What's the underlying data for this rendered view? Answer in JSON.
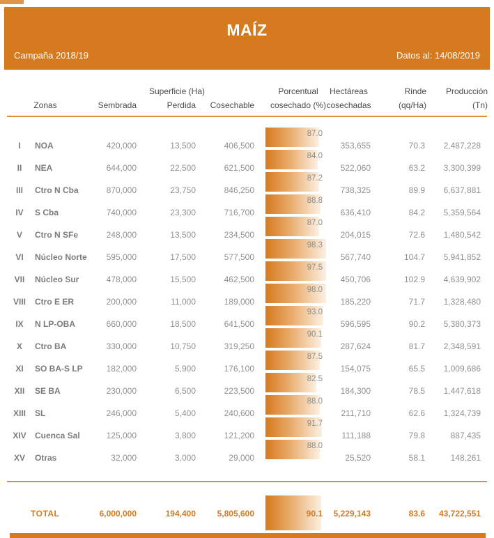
{
  "header": {
    "title": "MAÍZ",
    "campaign": "Campaña 2018/19",
    "data_date": "Datos al: 14/08/2019"
  },
  "columns": {
    "group_superficie": "Superficie (Ha)",
    "zonas": "Zonas",
    "sembrada": "Sembrada",
    "perdida": "Perdida",
    "cosechable": "Cosechable",
    "porcentual_line1": "Porcentual",
    "porcentual_line2": "cosechado (%)",
    "hectareas_line1": "Hectáreas",
    "hectareas_line2": "cosechadas",
    "rinde_line1": "Rinde",
    "rinde_line2": "(qq/Ha)",
    "produccion_line1": "Producción",
    "produccion_line2": "(Tn)"
  },
  "rows": [
    {
      "num": "I",
      "zona": "NOA",
      "sembrada": "420,000",
      "perdida": "13,500",
      "cosechable": "406,500",
      "pct": 87.0,
      "pct_label": "87.0",
      "cosechadas": "353,655",
      "rinde": "70.3",
      "produccion": "2,487,228"
    },
    {
      "num": "II",
      "zona": "NEA",
      "sembrada": "644,000",
      "perdida": "22,500",
      "cosechable": "621,500",
      "pct": 84.0,
      "pct_label": "84.0",
      "cosechadas": "522,060",
      "rinde": "63.2",
      "produccion": "3,300,399"
    },
    {
      "num": "III",
      "zona": "Ctro N Cba",
      "sembrada": "870,000",
      "perdida": "23,750",
      "cosechable": "846,250",
      "pct": 87.2,
      "pct_label": "87.2",
      "cosechadas": "738,325",
      "rinde": "89.9",
      "produccion": "6,637,881"
    },
    {
      "num": "IV",
      "zona": "S Cba",
      "sembrada": "740,000",
      "perdida": "23,300",
      "cosechable": "716,700",
      "pct": 88.8,
      "pct_label": "88.8",
      "cosechadas": "636,410",
      "rinde": "84.2",
      "produccion": "5,359,564"
    },
    {
      "num": "V",
      "zona": "Ctro N SFe",
      "sembrada": "248,000",
      "perdida": "13,500",
      "cosechable": "234,500",
      "pct": 87.0,
      "pct_label": "87.0",
      "cosechadas": "204,015",
      "rinde": "72.6",
      "produccion": "1,480,542"
    },
    {
      "num": "VI",
      "zona": "Núcleo Norte",
      "sembrada": "595,000",
      "perdida": "17,500",
      "cosechable": "577,500",
      "pct": 98.3,
      "pct_label": "98.3",
      "cosechadas": "567,740",
      "rinde": "104.7",
      "produccion": "5,941,852"
    },
    {
      "num": "VII",
      "zona": "Núcleo Sur",
      "sembrada": "478,000",
      "perdida": "15,500",
      "cosechable": "462,500",
      "pct": 97.5,
      "pct_label": "97.5",
      "cosechadas": "450,706",
      "rinde": "102.9",
      "produccion": "4,639,902"
    },
    {
      "num": "VIII",
      "zona": "Ctro E ER",
      "sembrada": "200,000",
      "perdida": "11,000",
      "cosechable": "189,000",
      "pct": 98.0,
      "pct_label": "98.0",
      "cosechadas": "185,220",
      "rinde": "71.7",
      "produccion": "1,328,480"
    },
    {
      "num": "IX",
      "zona": "N LP-OBA",
      "sembrada": "660,000",
      "perdida": "18,500",
      "cosechable": "641,500",
      "pct": 93.0,
      "pct_label": "93.0",
      "cosechadas": "596,595",
      "rinde": "90.2",
      "produccion": "5,380,373"
    },
    {
      "num": "X",
      "zona": "Ctro BA",
      "sembrada": "330,000",
      "perdida": "10,750",
      "cosechable": "319,250",
      "pct": 90.1,
      "pct_label": "90.1",
      "cosechadas": "287,624",
      "rinde": "81.7",
      "produccion": "2,348,591"
    },
    {
      "num": "XI",
      "zona": "SO BA-S LP",
      "sembrada": "182,000",
      "perdida": "5,900",
      "cosechable": "176,100",
      "pct": 87.5,
      "pct_label": "87.5",
      "cosechadas": "154,075",
      "rinde": "65.5",
      "produccion": "1,009,686"
    },
    {
      "num": "XII",
      "zona": "SE BA",
      "sembrada": "230,000",
      "perdida": "6,500",
      "cosechable": "223,500",
      "pct": 82.5,
      "pct_label": "82.5",
      "cosechadas": "184,300",
      "rinde": "78.5",
      "produccion": "1,447,618"
    },
    {
      "num": "XIII",
      "zona": "SL",
      "sembrada": "246,000",
      "perdida": "5,400",
      "cosechable": "240,600",
      "pct": 88.0,
      "pct_label": "88.0",
      "cosechadas": "211,710",
      "rinde": "62.6",
      "produccion": "1,324,739"
    },
    {
      "num": "XIV",
      "zona": "Cuenca Sal",
      "sembrada": "125,000",
      "perdida": "3,800",
      "cosechable": "121,200",
      "pct": 91.7,
      "pct_label": "91.7",
      "cosechadas": "111,188",
      "rinde": "79.8",
      "produccion": "887,435"
    },
    {
      "num": "XV",
      "zona": "Otras",
      "sembrada": "32,000",
      "perdida": "3,000",
      "cosechable": "29,000",
      "pct": 88.0,
      "pct_label": "88.0",
      "cosechadas": "25,520",
      "rinde": "58.1",
      "produccion": "148,261"
    }
  ],
  "total": {
    "label": "TOTAL",
    "sembrada": "6,000,000",
    "perdida": "194,400",
    "cosechable": "5,805,600",
    "pct": 90.1,
    "pct_label": "90.1",
    "cosechadas": "5,229,143",
    "rinde": "83.6",
    "produccion": "43,722,551"
  },
  "colors": {
    "accent": "#d57a1e",
    "rule": "#dd8f3c",
    "bar_fade": "#fbf0e3",
    "text_dark": "#4a4a4a",
    "text_zone": "#7b7b7b",
    "text_num": "#909090"
  },
  "chart_data": {
    "type": "table",
    "title": "MAÍZ",
    "subtitle": "Campaña 2018/19 — Datos al: 14/08/2019",
    "columns": [
      "Zonas",
      "Superficie Sembrada (Ha)",
      "Superficie Perdida (Ha)",
      "Superficie Cosechable (Ha)",
      "Porcentual cosechado (%)",
      "Hectáreas cosechadas",
      "Rinde (qq/Ha)",
      "Producción (Tn)"
    ],
    "bar_column": "Porcentual cosechado (%)",
    "bar_type": "bar",
    "bar_range": [
      0,
      100
    ],
    "rows": [
      [
        "I NOA",
        420000,
        13500,
        406500,
        87.0,
        353655,
        70.3,
        2487228
      ],
      [
        "II NEA",
        644000,
        22500,
        621500,
        84.0,
        522060,
        63.2,
        3300399
      ],
      [
        "III Ctro N Cba",
        870000,
        23750,
        846250,
        87.2,
        738325,
        89.9,
        6637881
      ],
      [
        "IV S Cba",
        740000,
        23300,
        716700,
        88.8,
        636410,
        84.2,
        5359564
      ],
      [
        "V Ctro N SFe",
        248000,
        13500,
        234500,
        87.0,
        204015,
        72.6,
        1480542
      ],
      [
        "VI Núcleo Norte",
        595000,
        17500,
        577500,
        98.3,
        567740,
        104.7,
        5941852
      ],
      [
        "VII Núcleo Sur",
        478000,
        15500,
        462500,
        97.5,
        450706,
        102.9,
        4639902
      ],
      [
        "VIII Ctro E ER",
        200000,
        11000,
        189000,
        98.0,
        185220,
        71.7,
        1328480
      ],
      [
        "IX N LP-OBA",
        660000,
        18500,
        641500,
        93.0,
        596595,
        90.2,
        5380373
      ],
      [
        "X Ctro BA",
        330000,
        10750,
        319250,
        90.1,
        287624,
        81.7,
        2348591
      ],
      [
        "XI SO BA-S LP",
        182000,
        5900,
        176100,
        87.5,
        154075,
        65.5,
        1009686
      ],
      [
        "XII SE BA",
        230000,
        6500,
        223500,
        82.5,
        184300,
        78.5,
        1447618
      ],
      [
        "XIII SL",
        246000,
        5400,
        240600,
        88.0,
        211710,
        62.6,
        1324739
      ],
      [
        "XIV Cuenca Sal",
        125000,
        3800,
        121200,
        91.7,
        111188,
        79.8,
        887435
      ],
      [
        "XV Otras",
        32000,
        3000,
        29000,
        88.0,
        25520,
        58.1,
        148261
      ]
    ],
    "total": [
      "TOTAL",
      6000000,
      194400,
      5805600,
      90.1,
      5229143,
      83.6,
      43722551
    ]
  }
}
